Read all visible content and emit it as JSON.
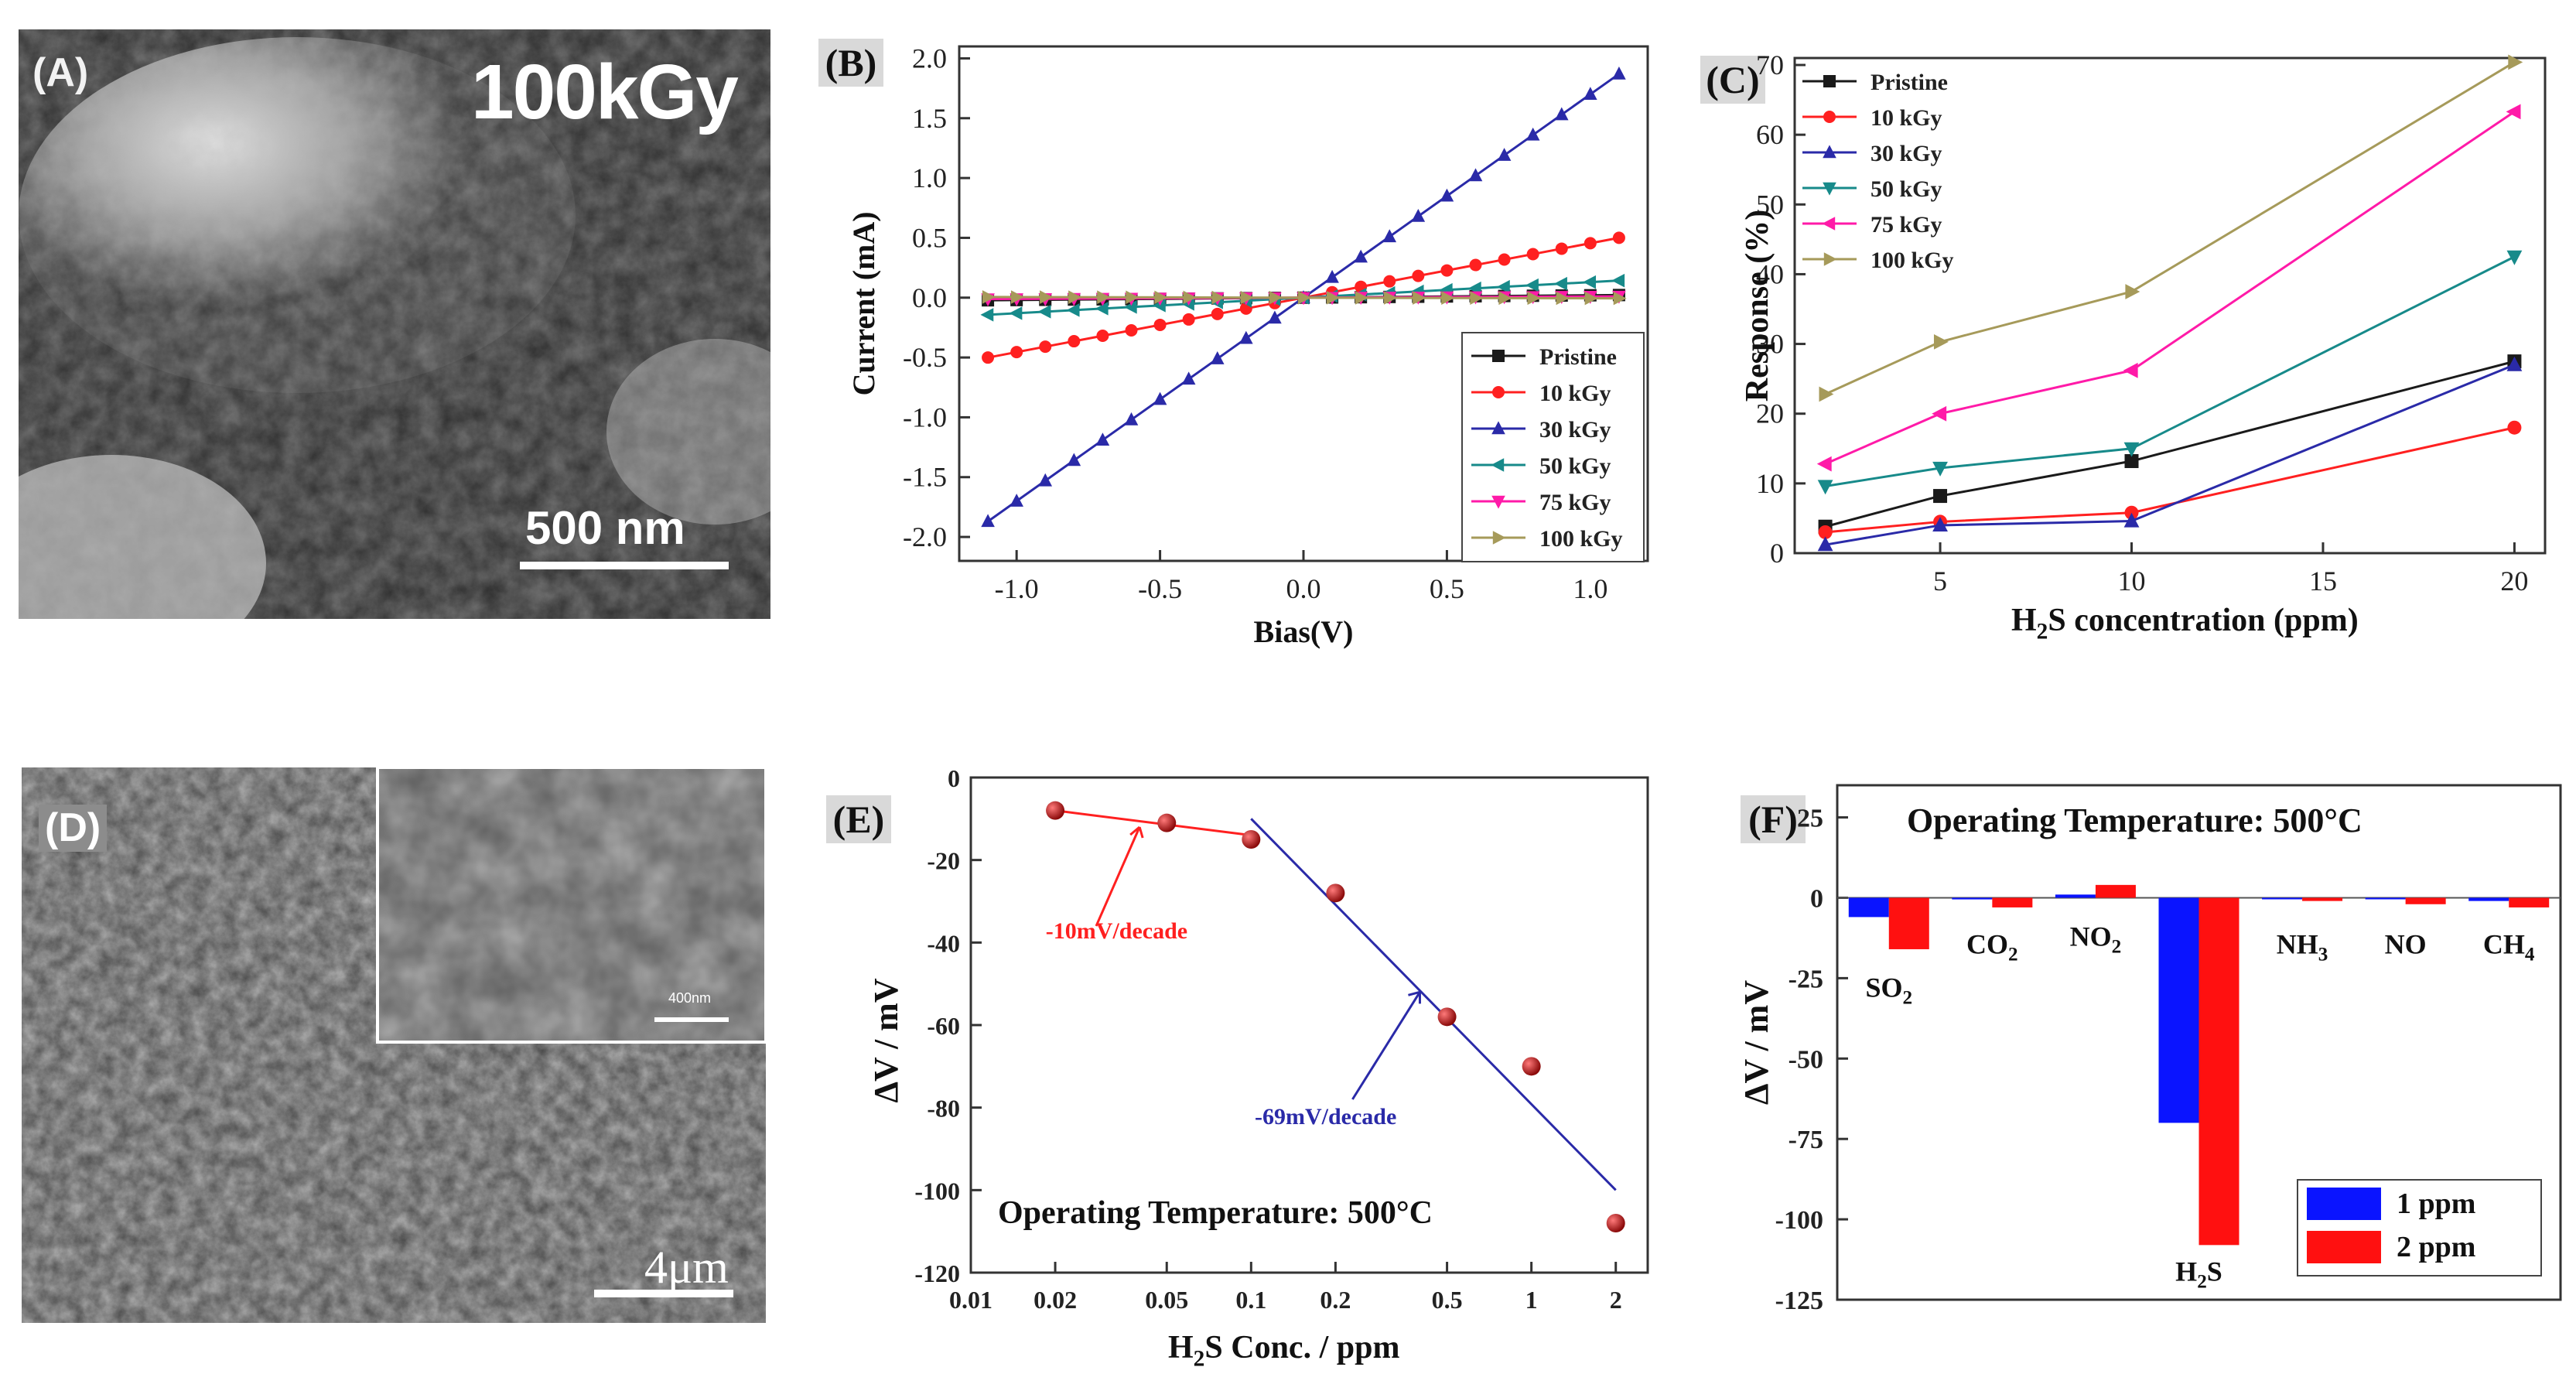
{
  "panels": {
    "A": {
      "label": "(A)",
      "dose_label": "100kGy",
      "scale_bar": "500 nm"
    },
    "D": {
      "label": "(D)",
      "scale_bar": "4μm",
      "inset_scale": "400nm"
    }
  },
  "colors": {
    "black": "#1a1a1a",
    "red": "#ff2020",
    "blue": "#2a2aa8",
    "teal": "#178a8a",
    "magenta": "#ff1aa8",
    "olive": "#a69a5a",
    "bar_blue": "#0a14ff",
    "bar_red": "#ff1010"
  },
  "chart_data": [
    {
      "panel": "B",
      "type": "line",
      "label": "(B)",
      "xlabel": "Bias(V)",
      "ylabel": "Current (mA)",
      "xlim": [
        -1.2,
        1.2
      ],
      "ylim": [
        -2.2,
        2.1
      ],
      "xticks": [
        -1.0,
        -0.5,
        0.0,
        0.5,
        1.0
      ],
      "xtick_labels": [
        "-1.0",
        "-0.5",
        "0.0",
        "0.5",
        "1.0"
      ],
      "yticks": [
        2.0,
        1.5,
        1.0,
        0.5,
        0.0,
        -0.5,
        -1.0,
        -1.5,
        -2.0
      ],
      "ytick_labels": [
        "2.0",
        "1.5",
        "1.0",
        "0.5",
        "0.0",
        "-0.5",
        "-1.0",
        "-1.5",
        "-2.0"
      ],
      "legend_position": "bottom-right",
      "x_range": [
        -1.1,
        1.1
      ],
      "n_points": 23,
      "series": [
        {
          "name": "Pristine",
          "slope": 0.02,
          "color": "#1a1a1a",
          "marker": "square"
        },
        {
          "name": "10 kGy",
          "slope": 0.455,
          "color": "#ff2020",
          "marker": "circle"
        },
        {
          "name": "30 kGy",
          "slope": 1.7,
          "color": "#2a2aa8",
          "marker": "triangle-up"
        },
        {
          "name": "50 kGy",
          "slope": 0.13,
          "color": "#178a8a",
          "marker": "triangle-left"
        },
        {
          "name": "75 kGy",
          "slope": 0.01,
          "color": "#ff1aa8",
          "marker": "triangle-down"
        },
        {
          "name": "100 kGy",
          "slope": -0.005,
          "color": "#a69a5a",
          "marker": "triangle-right"
        }
      ]
    },
    {
      "panel": "C",
      "type": "line",
      "label": "(C)",
      "xlabel": "H",
      "xlabel_sub": "2",
      "xlabel_rest": "S concentration (ppm)",
      "ylabel": "Response (%)",
      "xlim": [
        1.2,
        20.8
      ],
      "ylim": [
        0,
        71
      ],
      "xticks": [
        5,
        10,
        15,
        20
      ],
      "xtick_labels": [
        "5",
        "10",
        "15",
        "20"
      ],
      "yticks": [
        0,
        10,
        20,
        30,
        40,
        50,
        60,
        70
      ],
      "ytick_labels": [
        "0",
        "10",
        "20",
        "30",
        "40",
        "50",
        "60",
        "70"
      ],
      "legend_position": "top-left",
      "x": [
        2,
        5,
        10,
        20
      ],
      "series": [
        {
          "name": "Pristine",
          "values": [
            3.8,
            8.2,
            13.2,
            27.5
          ],
          "color": "#1a1a1a",
          "marker": "square"
        },
        {
          "name": "10 kGy",
          "values": [
            3.0,
            4.5,
            5.8,
            18.0
          ],
          "color": "#ff2020",
          "marker": "circle"
        },
        {
          "name": "30 kGy",
          "values": [
            1.2,
            4.0,
            4.6,
            27.0
          ],
          "color": "#2a2aa8",
          "marker": "triangle-up"
        },
        {
          "name": "50 kGy",
          "values": [
            9.6,
            12.2,
            15.0,
            42.5
          ],
          "color": "#178a8a",
          "marker": "triangle-down"
        },
        {
          "name": "75 kGy",
          "values": [
            12.8,
            20.0,
            26.2,
            63.3
          ],
          "color": "#ff1aa8",
          "marker": "triangle-left"
        },
        {
          "name": "100 kGy",
          "values": [
            22.8,
            30.3,
            37.5,
            70.4
          ],
          "color": "#a69a5a",
          "marker": "triangle-right"
        }
      ]
    },
    {
      "panel": "E",
      "type": "scatter",
      "label": "(E)",
      "xlabel": "H",
      "xlabel_sub": "2",
      "xlabel_rest": "S Conc. / ppm",
      "ylabel": "ΔV / mV",
      "xscale": "log",
      "xlim": [
        0.01,
        2.6
      ],
      "ylim": [
        -120,
        0
      ],
      "xticks": [
        0.01,
        0.02,
        0.05,
        0.1,
        0.2,
        0.5,
        1,
        2
      ],
      "xtick_labels": [
        "0.01",
        "0.02",
        "0.05",
        "0.1",
        "0.2",
        "0.5",
        "1",
        "2"
      ],
      "yticks": [
        0,
        -20,
        -40,
        -60,
        -80,
        -100,
        -120
      ],
      "ytick_labels": [
        "0",
        "-20",
        "-40",
        "-60",
        "-80",
        "-100",
        "-120"
      ],
      "points": {
        "x": [
          0.02,
          0.05,
          0.1,
          0.2,
          0.5,
          1,
          2
        ],
        "y": [
          -8,
          -11,
          -15,
          -28,
          -58,
          -70,
          -108
        ]
      },
      "fit_lines": [
        {
          "name": "-10mV/decade",
          "x": [
            0.02,
            0.1
          ],
          "y": [
            -8,
            -14
          ],
          "color": "#ff2020"
        },
        {
          "name": "-69mV/decade",
          "x": [
            0.1,
            2
          ],
          "y": [
            -10,
            -100
          ],
          "color": "#2a2aa8"
        }
      ],
      "annotations": [
        {
          "text": "-10mV/decade",
          "color": "#ff2020"
        },
        {
          "text": "-69mV/decade",
          "color": "#2a2aa8"
        }
      ],
      "caption": "Operating Temperature: 500°C"
    },
    {
      "panel": "F",
      "type": "bar",
      "label": "(F)",
      "ylabel": "ΔV / mV",
      "title": "Operating Temperature: 500°C",
      "ylim": [
        -125,
        35
      ],
      "yticks": [
        25,
        0,
        -25,
        -50,
        -75,
        -100,
        -125
      ],
      "ytick_labels": [
        "25",
        "0",
        "-25",
        "-50",
        "-75",
        "-100",
        "-125"
      ],
      "categories": [
        "SO2",
        "CO2",
        "NO2",
        "H2S",
        "NH3",
        "NO",
        "CH4"
      ],
      "category_labels": [
        {
          "main": "SO",
          "sub": "2"
        },
        {
          "main": "CO",
          "sub": "2"
        },
        {
          "main": "NO",
          "sub": "2"
        },
        {
          "main": "H",
          "sub": "2",
          "rest": "S"
        },
        {
          "main": "NH",
          "sub": "3"
        },
        {
          "main": "NO",
          "sub": ""
        },
        {
          "main": "CH",
          "sub": "4"
        }
      ],
      "series": [
        {
          "name": "1 ppm",
          "values": [
            -6,
            -0.5,
            1,
            -70,
            -0.3,
            -0.3,
            -1
          ],
          "color": "#0a14ff"
        },
        {
          "name": "2 ppm",
          "values": [
            -16,
            -3,
            4,
            -108,
            -1,
            -2,
            -3
          ],
          "color": "#ff1010"
        }
      ],
      "legend_position": "bottom-right"
    }
  ]
}
